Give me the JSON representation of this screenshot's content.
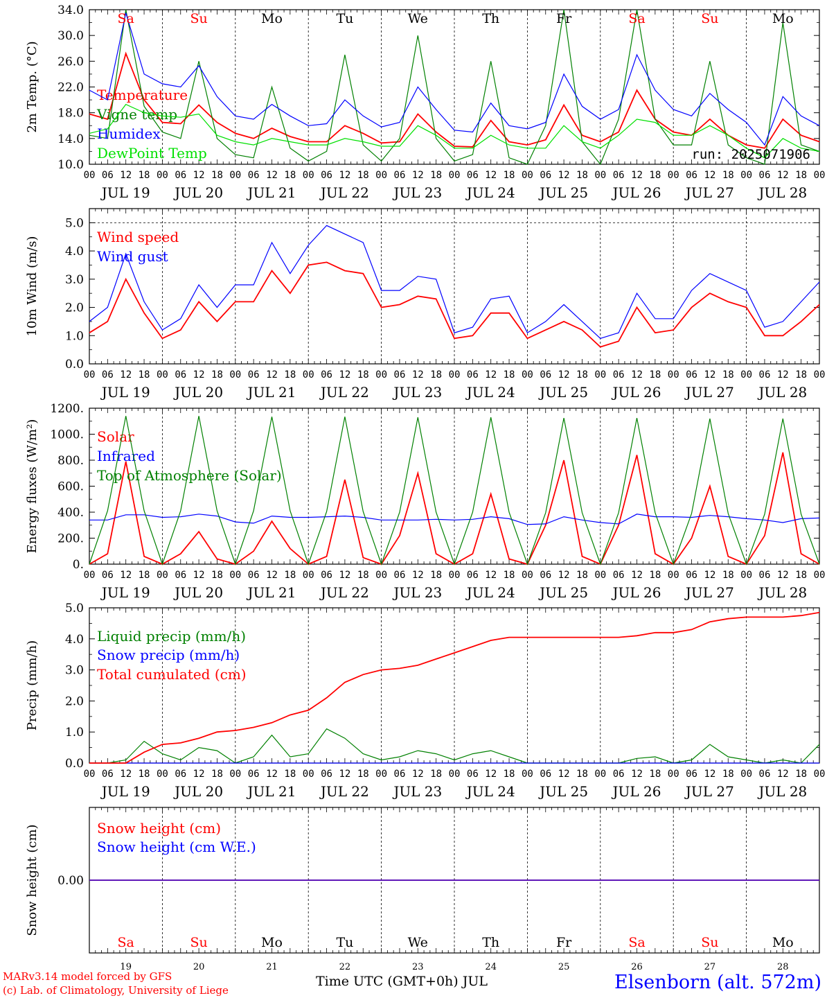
{
  "page": {
    "credit_line1": "MARv3.14 model forced by GFS",
    "credit_line2": "(c) Lab. of Climatology, University of Liege",
    "xlabel": "Time UTC (GMT+0h) JUL",
    "station": "Elsenborn (alt. 572m)",
    "run_label": "run: 2025071906"
  },
  "colors": {
    "red": "#ff0000",
    "green": "#008000",
    "blue": "#0000ff",
    "lightgreen": "#00e000",
    "black": "#000000"
  },
  "chart_data": [
    {
      "type": "line",
      "ylabel": "2m Temp. (°C)",
      "ylim": [
        10,
        34
      ],
      "yticks": [
        10,
        14,
        18,
        22,
        26,
        30,
        34
      ],
      "yticklabels": [
        "10.0",
        "14.0",
        "18.0",
        "22.0",
        "26.0",
        "30.0",
        "34.0"
      ],
      "x": [
        "JUL 19 00",
        "JUL 19 06",
        "JUL 19 12",
        "JUL 19 18",
        "JUL 20 00",
        "JUL 20 06",
        "JUL 20 12",
        "JUL 20 18",
        "JUL 21 00",
        "JUL 21 06",
        "JUL 21 12",
        "JUL 21 18",
        "JUL 22 00",
        "JUL 22 06",
        "JUL 22 12",
        "JUL 22 18",
        "JUL 23 00",
        "JUL 23 06",
        "JUL 23 12",
        "JUL 23 18",
        "JUL 24 00",
        "JUL 24 06",
        "JUL 24 12",
        "JUL 24 18",
        "JUL 25 00",
        "JUL 25 06",
        "JUL 25 12",
        "JUL 25 18",
        "JUL 26 00",
        "JUL 26 06",
        "JUL 26 12",
        "JUL 26 18",
        "JUL 27 00",
        "JUL 27 06",
        "JUL 27 12",
        "JUL 27 18",
        "JUL 28 00",
        "JUL 28 06",
        "JUL 28 12",
        "JUL 28 18",
        "JUL 29 00"
      ],
      "series": [
        {
          "name": "Temperature",
          "color": "red",
          "values": [
            17.8,
            17.0,
            27.2,
            20.0,
            16.5,
            16.3,
            19.2,
            16.5,
            14.8,
            14.0,
            15.6,
            14.3,
            13.5,
            13.5,
            16.0,
            14.8,
            13.3,
            13.5,
            17.8,
            15.0,
            12.8,
            12.7,
            16.8,
            13.5,
            13.0,
            13.8,
            19.2,
            14.5,
            13.5,
            15.0,
            21.5,
            17.0,
            15.0,
            14.5,
            17.0,
            14.5,
            13.0,
            12.5,
            17.0,
            14.5,
            13.5
          ]
        },
        {
          "name": "Vigne temp",
          "color": "green",
          "values": [
            14.5,
            14.0,
            35.0,
            19.0,
            15.0,
            14.0,
            26.0,
            14.0,
            11.5,
            11.0,
            22.0,
            12.5,
            10.5,
            12.0,
            27.0,
            13.0,
            10.5,
            14.0,
            30.0,
            14.0,
            10.5,
            11.5,
            26.0,
            11.0,
            10.0,
            16.0,
            34.5,
            13.5,
            10.0,
            17.0,
            34.0,
            17.0,
            13.0,
            13.0,
            26.0,
            13.0,
            11.0,
            10.0,
            32.0,
            13.0,
            12.0
          ]
        },
        {
          "name": "Humidex",
          "color": "blue",
          "values": [
            21.5,
            20.0,
            33.5,
            24.0,
            22.5,
            22.0,
            25.3,
            20.5,
            17.5,
            17.0,
            19.3,
            17.5,
            16.0,
            16.3,
            20.0,
            17.5,
            15.8,
            16.5,
            22.0,
            18.5,
            15.3,
            15.0,
            19.5,
            16.0,
            15.5,
            16.5,
            24.0,
            19.0,
            17.0,
            18.5,
            27.0,
            21.5,
            18.5,
            17.5,
            21.0,
            18.5,
            16.5,
            13.0,
            20.5,
            17.5,
            16.0
          ]
        },
        {
          "name": "DewPoint Temp",
          "color": "lightgreen",
          "values": [
            14.8,
            15.5,
            19.3,
            18.0,
            17.5,
            17.3,
            17.8,
            14.5,
            13.5,
            13.0,
            14.0,
            13.5,
            13.0,
            13.0,
            14.0,
            13.5,
            12.8,
            12.8,
            16.0,
            14.5,
            12.5,
            12.5,
            14.5,
            13.0,
            12.5,
            12.5,
            16.0,
            13.5,
            12.5,
            14.5,
            17.0,
            16.5,
            14.5,
            14.5,
            16.0,
            14.5,
            12.5,
            11.0,
            14.0,
            12.5,
            12.0
          ]
        }
      ],
      "day_labels": [
        "Sa",
        "Su",
        "Mo",
        "Tu",
        "We",
        "Th",
        "Fr",
        "Sa",
        "Su",
        "Mo"
      ]
    },
    {
      "type": "line",
      "ylabel": "10m Wind (m/s)",
      "ylim": [
        0,
        5.5
      ],
      "yticks": [
        0,
        1,
        2,
        3,
        4,
        5
      ],
      "yticklabels": [
        "0.0",
        "1.0",
        "2.0",
        "3.0",
        "4.0",
        "5.0"
      ],
      "series": [
        {
          "name": "Wind speed",
          "color": "red",
          "values": [
            1.1,
            1.5,
            3.0,
            1.8,
            0.9,
            1.2,
            2.2,
            1.5,
            2.2,
            2.2,
            3.3,
            2.5,
            3.5,
            3.6,
            3.3,
            3.2,
            2.0,
            2.1,
            2.4,
            2.3,
            0.9,
            1.0,
            1.8,
            1.8,
            0.9,
            1.2,
            1.5,
            1.2,
            0.6,
            0.8,
            2.0,
            1.1,
            1.2,
            2.0,
            2.5,
            2.2,
            2.0,
            1.0,
            1.0,
            1.5,
            2.1
          ]
        },
        {
          "name": "Wind gust",
          "color": "blue",
          "values": [
            1.5,
            2.0,
            3.9,
            2.2,
            1.2,
            1.6,
            2.8,
            2.0,
            2.8,
            2.8,
            4.3,
            3.2,
            4.2,
            4.9,
            4.6,
            4.3,
            2.6,
            2.6,
            3.1,
            3.0,
            1.1,
            1.3,
            2.3,
            2.4,
            1.1,
            1.5,
            2.1,
            1.5,
            0.9,
            1.1,
            2.5,
            1.6,
            1.6,
            2.6,
            3.2,
            2.9,
            2.6,
            1.3,
            1.5,
            2.2,
            2.9
          ]
        }
      ]
    },
    {
      "type": "line",
      "ylabel": "Energy fluxes (W/m²)",
      "ylim": [
        0,
        1200
      ],
      "yticks": [
        0,
        200,
        400,
        600,
        800,
        1000,
        1200
      ],
      "yticklabels": [
        "0.",
        "200.",
        "400.",
        "600.",
        "800.",
        "1000.",
        "1200."
      ],
      "series": [
        {
          "name": "Solar",
          "color": "red",
          "values": [
            0,
            80,
            790,
            60,
            0,
            80,
            250,
            40,
            0,
            100,
            330,
            120,
            0,
            60,
            650,
            50,
            0,
            220,
            700,
            80,
            0,
            80,
            540,
            40,
            0,
            300,
            800,
            60,
            0,
            300,
            840,
            80,
            0,
            200,
            600,
            60,
            0,
            220,
            860,
            80,
            0
          ]
        },
        {
          "name": "Infrared",
          "color": "blue",
          "values": [
            340,
            340,
            380,
            380,
            360,
            365,
            385,
            370,
            325,
            315,
            370,
            360,
            360,
            365,
            370,
            360,
            340,
            340,
            340,
            345,
            340,
            345,
            365,
            350,
            305,
            310,
            365,
            340,
            320,
            310,
            385,
            365,
            365,
            360,
            375,
            365,
            350,
            340,
            320,
            350,
            355
          ]
        },
        {
          "name": "Top of Atmosphere (Solar)",
          "color": "green",
          "values": [
            0,
            410,
            1140,
            410,
            0,
            410,
            1140,
            410,
            0,
            410,
            1135,
            410,
            0,
            405,
            1135,
            405,
            0,
            400,
            1130,
            400,
            0,
            400,
            1130,
            400,
            0,
            395,
            1125,
            395,
            0,
            395,
            1125,
            395,
            0,
            390,
            1120,
            390,
            0,
            385,
            1120,
            385,
            0
          ]
        }
      ]
    },
    {
      "type": "line",
      "ylabel": "Precip (mm/h)",
      "ylim": [
        0,
        5
      ],
      "yticks": [
        0,
        1,
        2,
        3,
        4,
        5
      ],
      "yticklabels": [
        "0.0",
        "1.0",
        "2.0",
        "3.0",
        "4.0",
        "5.0"
      ],
      "series": [
        {
          "name": "Liquid precip (mm/h)",
          "color": "green",
          "values": [
            0,
            0,
            0.1,
            0.7,
            0.3,
            0.1,
            0.5,
            0.4,
            0,
            0.2,
            0.9,
            0.2,
            0.3,
            1.1,
            0.8,
            0.3,
            0.1,
            0.2,
            0.4,
            0.3,
            0.1,
            0.3,
            0.4,
            0.2,
            0,
            0,
            0,
            0,
            0,
            0,
            0.15,
            0.2,
            0,
            0.1,
            0.6,
            0.2,
            0.1,
            0,
            0.1,
            0,
            0.6
          ]
        },
        {
          "name": "Snow precip (mm/h)",
          "color": "blue",
          "values": [
            0,
            0,
            0,
            0,
            0,
            0,
            0,
            0,
            0,
            0,
            0,
            0,
            0,
            0,
            0,
            0,
            0,
            0,
            0,
            0,
            0,
            0,
            0,
            0,
            0,
            0,
            0,
            0,
            0,
            0,
            0,
            0,
            0,
            0,
            0,
            0,
            0,
            0,
            0,
            0,
            0
          ]
        },
        {
          "name": "Total cumulated (cm)",
          "color": "red",
          "values": [
            0,
            0,
            0,
            0.35,
            0.6,
            0.65,
            0.8,
            1.0,
            1.05,
            1.15,
            1.3,
            1.55,
            1.7,
            2.1,
            2.6,
            2.85,
            3.0,
            3.05,
            3.15,
            3.35,
            3.55,
            3.75,
            3.95,
            4.05,
            4.05,
            4.05,
            4.05,
            4.05,
            4.05,
            4.05,
            4.1,
            4.2,
            4.2,
            4.3,
            4.55,
            4.65,
            4.7,
            4.7,
            4.7,
            4.75,
            4.85
          ]
        }
      ]
    },
    {
      "type": "line",
      "ylabel": "Snow height (cm)",
      "ylim": [
        -1,
        1
      ],
      "yticks": [
        0
      ],
      "yticklabels": [
        "0.00"
      ],
      "series": [
        {
          "name": "Snow height (cm)",
          "color": "red",
          "values": [
            0,
            0
          ]
        },
        {
          "name": "Snow height (cm W.E.)",
          "color": "blue",
          "values": [
            0,
            0
          ]
        }
      ],
      "day_labels": [
        "Sa",
        "Su",
        "Mo",
        "Tu",
        "We",
        "Th",
        "Fr",
        "Sa",
        "Su",
        "Mo"
      ],
      "day_numbers": [
        "19",
        "20",
        "21",
        "22",
        "23",
        "24",
        "25",
        "26",
        "27",
        "28"
      ]
    }
  ],
  "axis": {
    "hour_ticks": [
      "00",
      "06",
      "12",
      "18"
    ],
    "end_tick": "00",
    "day_dates": [
      "JUL 19",
      "JUL 20",
      "JUL 21",
      "JUL 22",
      "JUL 23",
      "JUL 24",
      "JUL 25",
      "JUL 26",
      "JUL 27",
      "JUL 28"
    ],
    "weekend_days": [
      "Sa",
      "Su"
    ]
  }
}
